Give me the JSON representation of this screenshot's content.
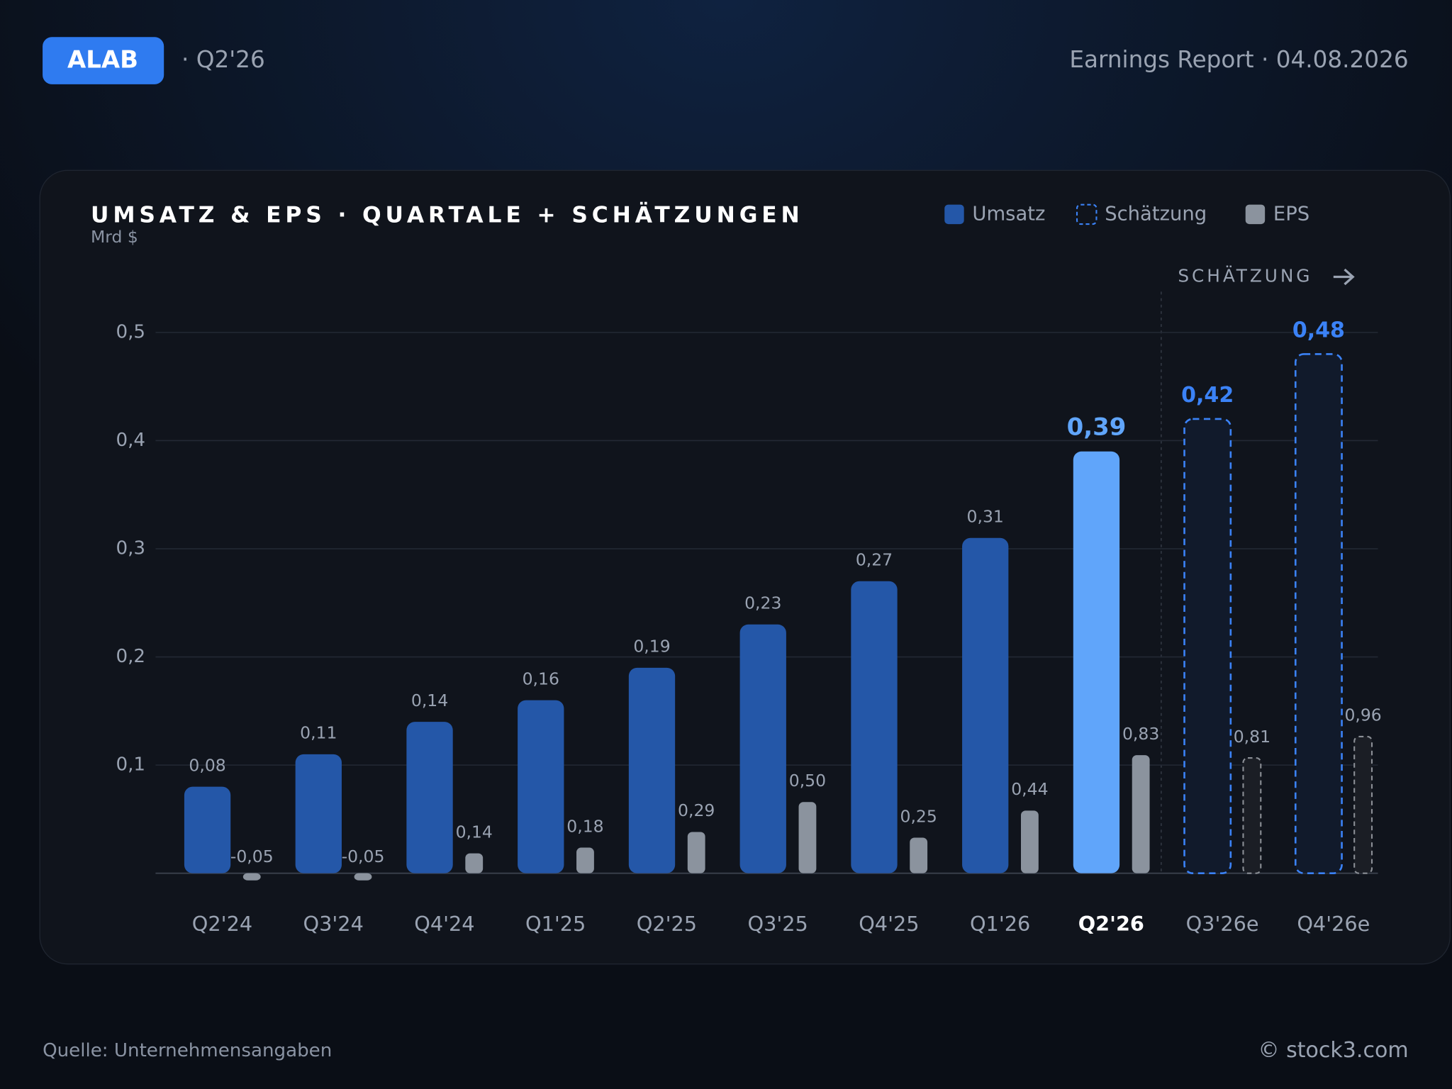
{
  "header": {
    "ticker": "ALAB",
    "period": "· Q2'26",
    "report": "Earnings Report · 04.08.2026"
  },
  "footer": {
    "source": "Quelle: Unternehmensangaben",
    "brand": "© stock3.com"
  },
  "chart_data": {
    "type": "bar",
    "title": "UMSATZ & EPS · QUARTALE + SCHÄTZUNGEN",
    "subtitle": "Mrd $",
    "annotation": "SCHÄTZUNG",
    "categories": [
      "Q2'24",
      "Q3'24",
      "Q4'24",
      "Q1'25",
      "Q2'25",
      "Q3'25",
      "Q4'25",
      "Q1'26",
      "Q2'26",
      "Q3'26e",
      "Q4'26e"
    ],
    "highlight_index": 8,
    "highlight_color": "#60a5fa",
    "series": [
      {
        "name": "Umsatz",
        "color": "#2457a8",
        "values": [
          0.08,
          0.11,
          0.14,
          0.16,
          0.19,
          0.23,
          0.27,
          0.31,
          0.39,
          null,
          null
        ],
        "value_labels": [
          "0,08",
          "0,11",
          "0,14",
          "0,16",
          "0,19",
          "0,23",
          "0,27",
          "0,31",
          "0,39",
          null,
          null
        ]
      },
      {
        "name": "Schätzung",
        "color": "#3b82f6",
        "style": "dashed",
        "values": [
          null,
          null,
          null,
          null,
          null,
          null,
          null,
          null,
          null,
          0.42,
          0.48
        ],
        "value_labels": [
          null,
          null,
          null,
          null,
          null,
          null,
          null,
          null,
          null,
          "0,42",
          "0,48"
        ]
      },
      {
        "name": "EPS",
        "color": "#8b939e",
        "axis": "y2",
        "values": [
          -0.05,
          -0.05,
          0.14,
          0.18,
          0.29,
          0.5,
          0.25,
          0.44,
          0.83,
          0.81,
          0.96
        ],
        "value_labels": [
          "-0,05",
          "-0,05",
          "0,14",
          "0,18",
          "0,29",
          "0,50",
          "0,25",
          "0,44",
          "0,83",
          "0,81",
          "0,96"
        ]
      }
    ],
    "ylim": [
      0,
      0.5
    ],
    "yticks": [
      {
        "value": 0.1,
        "label": "0,1"
      },
      {
        "value": 0.2,
        "label": "0,2"
      },
      {
        "value": 0.3,
        "label": "0,3"
      },
      {
        "value": 0.4,
        "label": "0,4"
      },
      {
        "value": 0.5,
        "label": "0,5"
      }
    ],
    "y2lim": [
      0,
      3.8
    ],
    "grid": true
  }
}
